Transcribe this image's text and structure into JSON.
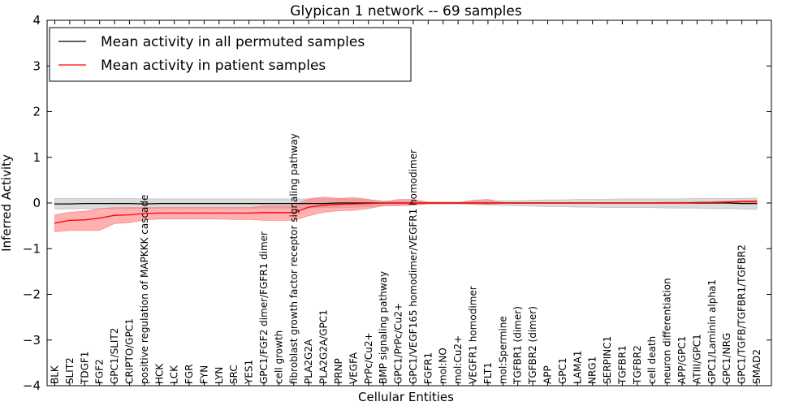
{
  "chart_data": {
    "type": "line",
    "title": "Glypican 1 network -- 69 samples",
    "xlabel": "Cellular Entities",
    "ylabel": "Inferred Activity",
    "ylim": [
      -4,
      4
    ],
    "yticks": [
      -4,
      -3,
      -2,
      -1,
      0,
      1,
      2,
      3,
      4
    ],
    "grid": false,
    "legend_position": "top-left",
    "categories": [
      "BLK",
      "SLIT2",
      "TDGF1",
      "FGF2",
      "GPC1/SLIT2",
      "CRIPTO/GPC1",
      "positive regulation of MAPKKK cascade",
      "HCK",
      "LCK",
      "FGR",
      "FYN",
      "LYN",
      "SRC",
      "YES1",
      "GPC1/FGF2 dimer/FGFR1 dimer",
      "cell growth",
      "fibroblast growth factor receptor signaling pathway",
      "PLA2G2A",
      "PLA2G2A/GPC1",
      "PRNP",
      "VEGFA",
      "PrPc/Cu2+",
      "BMP signaling pathway",
      "GPC1/PrPc/Cu2+",
      "GPC1/VEGF165 homodimer/VEGFR1 homodimer",
      "FGFR1",
      "mol:NO",
      "mol:Cu2+",
      "VEGFR1 homodimer",
      "FLT1",
      "mol:Spermine",
      "TGFBR1 (dimer)",
      "TGFBR2 (dimer)",
      "APP",
      "GPC1",
      "LAMA1",
      "NRG1",
      "SERPINC1",
      "TGFBR1",
      "TGFBR2",
      "cell death",
      "neuron differentiation",
      "APP/GPC1",
      "ATIII/GPC1",
      "GPC1/Laminin alpha1",
      "GPC1/NRG",
      "GPC1/TGFB/TGFBR1/TGFBR2",
      "SMAD2"
    ],
    "series": [
      {
        "name": "Mean activity in all permuted samples",
        "color": "#000000",
        "band_color": "#b0b0b0",
        "values": [
          -0.02,
          -0.02,
          -0.01,
          -0.01,
          -0.01,
          -0.01,
          -0.02,
          -0.01,
          -0.01,
          -0.01,
          -0.01,
          -0.01,
          -0.01,
          -0.01,
          -0.01,
          -0.01,
          -0.01,
          -0.01,
          -0.01,
          0.0,
          0.0,
          0.0,
          0.0,
          0.0,
          0.0,
          0.0,
          0.0,
          0.0,
          0.0,
          0.0,
          0.0,
          0.0,
          0.0,
          0.0,
          0.0,
          0.0,
          0.0,
          0.0,
          0.0,
          0.0,
          0.0,
          0.0,
          0.0,
          0.0,
          0.0,
          0.0,
          -0.01,
          -0.01
        ],
        "lower": [
          -0.13,
          -0.13,
          -0.12,
          -0.12,
          -0.12,
          -0.12,
          -0.12,
          -0.11,
          -0.11,
          -0.11,
          -0.11,
          -0.11,
          -0.11,
          -0.11,
          -0.11,
          -0.11,
          -0.11,
          -0.11,
          -0.1,
          -0.1,
          -0.09,
          -0.08,
          -0.05,
          -0.04,
          -0.03,
          -0.02,
          -0.02,
          -0.02,
          -0.03,
          -0.04,
          -0.05,
          -0.06,
          -0.07,
          -0.08,
          -0.08,
          -0.09,
          -0.09,
          -0.1,
          -0.1,
          -0.1,
          -0.1,
          -0.11,
          -0.11,
          -0.11,
          -0.12,
          -0.12,
          -0.13,
          -0.14
        ],
        "upper": [
          0.1,
          0.1,
          0.1,
          0.1,
          0.1,
          0.1,
          0.09,
          0.09,
          0.09,
          0.09,
          0.09,
          0.09,
          0.09,
          0.09,
          0.09,
          0.09,
          0.09,
          0.09,
          0.09,
          0.09,
          0.08,
          0.07,
          0.05,
          0.04,
          0.03,
          0.02,
          0.02,
          0.02,
          0.03,
          0.04,
          0.05,
          0.05,
          0.06,
          0.07,
          0.07,
          0.08,
          0.08,
          0.08,
          0.09,
          0.09,
          0.09,
          0.09,
          0.09,
          0.1,
          0.1,
          0.1,
          0.1,
          0.11
        ]
      },
      {
        "name": "Mean activity in patient samples",
        "color": "#ff0000",
        "band_color": "#ff7070",
        "values": [
          -0.44,
          -0.38,
          -0.37,
          -0.33,
          -0.27,
          -0.26,
          -0.23,
          -0.22,
          -0.22,
          -0.22,
          -0.22,
          -0.22,
          -0.22,
          -0.22,
          -0.21,
          -0.21,
          -0.21,
          -0.09,
          -0.05,
          -0.03,
          -0.02,
          -0.01,
          0.0,
          0.0,
          0.0,
          0.0,
          0.0,
          0.0,
          0.0,
          0.0,
          0.0,
          0.0,
          0.0,
          0.0,
          0.0,
          0.0,
          0.0,
          0.0,
          0.0,
          0.0,
          0.0,
          0.0,
          0.0,
          0.01,
          0.01,
          0.02,
          0.03,
          0.03
        ],
        "lower": [
          -0.63,
          -0.6,
          -0.6,
          -0.6,
          -0.45,
          -0.43,
          -0.37,
          -0.35,
          -0.35,
          -0.35,
          -0.35,
          -0.35,
          -0.36,
          -0.36,
          -0.38,
          -0.38,
          -0.38,
          -0.28,
          -0.2,
          -0.17,
          -0.16,
          -0.12,
          -0.06,
          -0.06,
          -0.05,
          -0.02,
          -0.02,
          -0.01,
          -0.02,
          -0.03,
          -0.01,
          -0.01,
          -0.01,
          -0.01,
          -0.01,
          -0.01,
          -0.01,
          -0.01,
          -0.01,
          -0.01,
          -0.01,
          -0.01,
          -0.01,
          -0.0,
          -0.0,
          0.0,
          0.01,
          0.01
        ],
        "upper": [
          -0.26,
          -0.2,
          -0.18,
          -0.12,
          -0.1,
          -0.1,
          -0.1,
          -0.1,
          -0.1,
          -0.1,
          -0.1,
          -0.1,
          -0.1,
          -0.1,
          -0.06,
          -0.06,
          -0.06,
          0.09,
          0.13,
          0.1,
          0.12,
          0.08,
          0.02,
          0.08,
          0.08,
          0.02,
          0.02,
          0.01,
          0.06,
          0.08,
          0.01,
          0.01,
          0.01,
          0.01,
          0.01,
          0.01,
          0.01,
          0.01,
          0.01,
          0.01,
          0.01,
          0.02,
          0.02,
          0.02,
          0.03,
          0.04,
          0.05,
          0.06
        ]
      }
    ]
  }
}
